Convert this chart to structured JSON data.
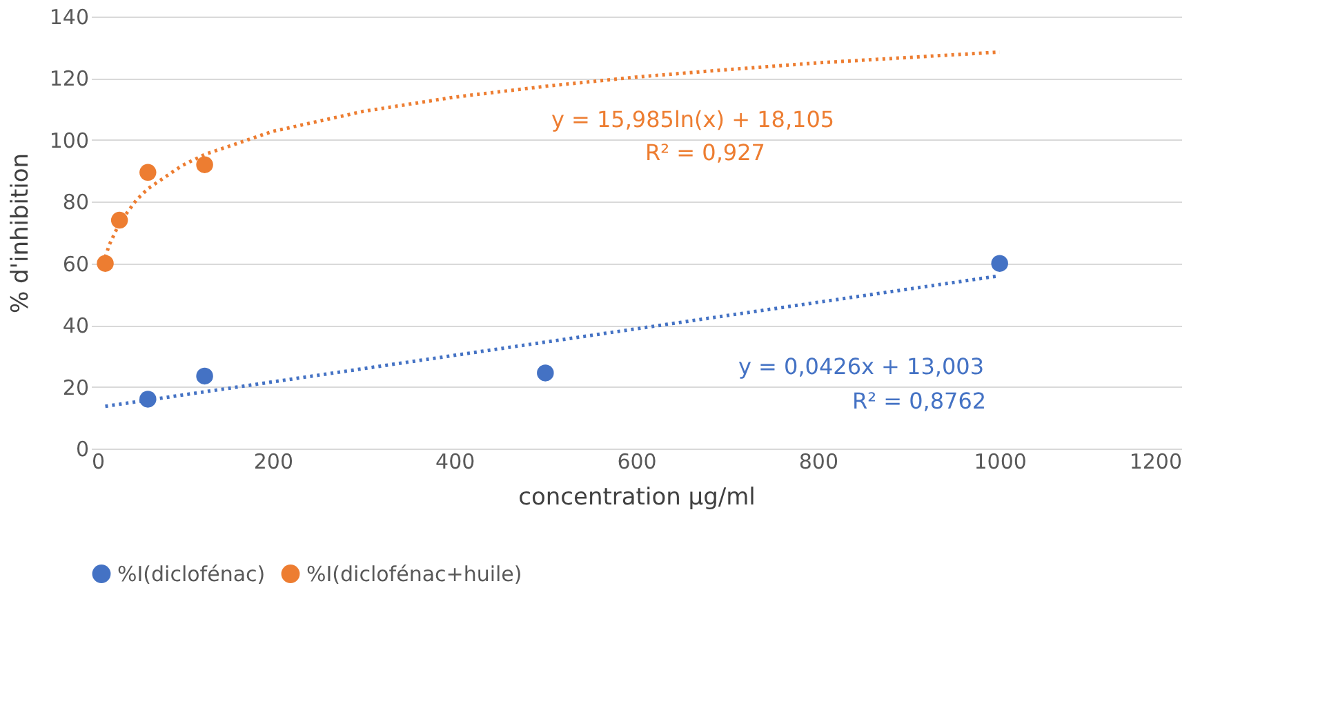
{
  "chart_data": {
    "type": "scatter",
    "xlabel": "concentration µg/ml",
    "ylabel": "% d'inhibition",
    "xlim": [
      0,
      1200
    ],
    "xticks": [
      0,
      200,
      400,
      600,
      800,
      1000,
      1200
    ],
    "ylim": [
      0,
      140
    ],
    "yticks": [
      0,
      20,
      40,
      60,
      80,
      100,
      120,
      140
    ],
    "grid": "y",
    "legend": "bottom",
    "marker": "circle",
    "series": [
      {
        "name": "%I(diclofénac)",
        "color": "#4472c4",
        "x": [
          62.5,
          125,
          500,
          1000
        ],
        "values": [
          16,
          23.5,
          24.5,
          60
        ]
      },
      {
        "name": "%I(diclofénac+huile)",
        "color": "#ed7d31",
        "x": [
          15.6,
          31.25,
          62.5,
          125
        ],
        "values": [
          60,
          74,
          89.5,
          92
        ]
      },
      {
        "type": "line",
        "line_style": "dotted",
        "marker": "none",
        "color": "#4472c4",
        "x": [
          15.6,
          1000
        ],
        "values": [
          13.7,
          56
        ]
      },
      {
        "type": "line",
        "line_style": "dotted",
        "marker": "none",
        "color": "#ed7d31",
        "x": [
          15.6,
          20,
          31.25,
          50,
          62.5,
          100,
          125,
          200,
          300,
          400,
          500,
          600,
          700,
          800,
          1000
        ],
        "values": [
          62,
          66,
          73.1,
          80.6,
          84.2,
          91.7,
          95.3,
          102.8,
          109.3,
          113.9,
          117.4,
          120.4,
          122.8,
          125,
          128.5
        ]
      }
    ],
    "annotations": [
      "y = 0,0426x + 13,003",
      "R² = 0,8762",
      "y = 15,985ln(x) + 18,105",
      "R² = 0,927"
    ]
  }
}
